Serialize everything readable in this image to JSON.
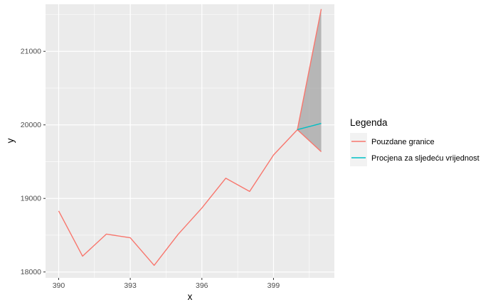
{
  "chart_data": {
    "type": "line",
    "xlabel": "x",
    "ylabel": "y",
    "xlim": [
      389.45,
      401.55
    ],
    "ylim": [
      17920,
      21640
    ],
    "xticks": [
      390,
      393,
      396,
      399
    ],
    "yticks": [
      18000,
      19000,
      20000,
      21000
    ],
    "grid": true,
    "legend": {
      "title": "Legenda",
      "position": "right",
      "entries": [
        "Pouzdane granice",
        "Procjena za sljedeću vrijednost"
      ]
    },
    "colors": {
      "bounds": "#F8766D",
      "forecast": "#00BFC4",
      "ribbon": "#999999",
      "panel": "#EBEBEB",
      "grid": "#FFFFFF"
    },
    "series": [
      {
        "name": "Pouzdane granice",
        "x": [
          390,
          391,
          392,
          393,
          394,
          395,
          396,
          397,
          398,
          399,
          400,
          401
        ],
        "values": [
          18830,
          18215,
          18515,
          18465,
          18090,
          18510,
          18870,
          19275,
          19095,
          19590,
          19935,
          21575
        ]
      },
      {
        "name": "Pouzdane granice",
        "x": [
          400,
          401
        ],
        "values": [
          19935,
          19635
        ]
      },
      {
        "name": "Procjena za sljedeću vrijednost",
        "x": [
          400,
          401
        ],
        "values": [
          19935,
          20020
        ]
      }
    ],
    "ribbon": {
      "x": [
        400,
        401
      ],
      "upper": [
        19935,
        21575
      ],
      "lower": [
        19935,
        19635
      ]
    }
  }
}
